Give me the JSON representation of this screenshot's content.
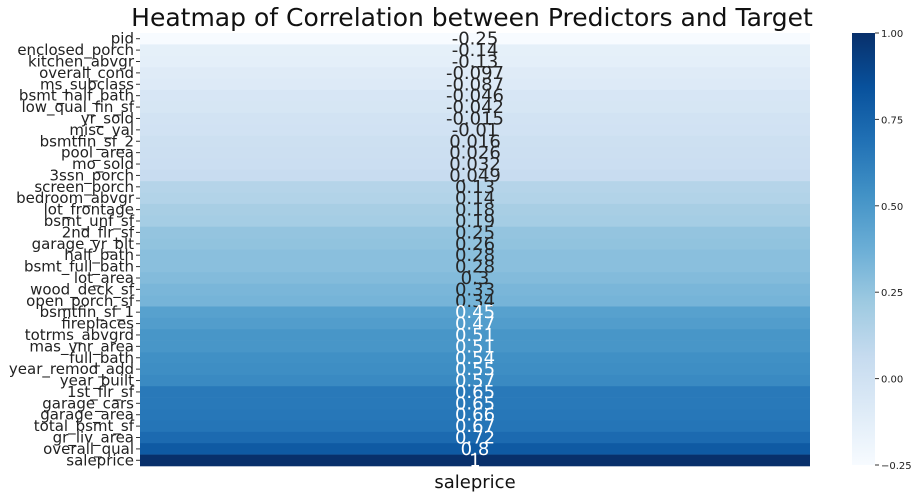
{
  "chart_data": {
    "type": "heatmap",
    "title": "Heatmap of Correlation between Predictors and Target",
    "column": "saleprice",
    "xlabel": "saleprice",
    "colormap": "Blues",
    "vmin": -0.25,
    "vmax": 1.0,
    "colorbar_ticks": [
      "1.00",
      "0.75",
      "0.50",
      "0.25",
      "0.00",
      "−0.25"
    ],
    "colorbar_tick_values": [
      1.0,
      0.75,
      0.5,
      0.25,
      0.0,
      -0.25
    ],
    "rows": [
      {
        "name": "pid",
        "value": -0.25,
        "label": "-0.25"
      },
      {
        "name": "enclosed_porch",
        "value": -0.14,
        "label": "-0.14"
      },
      {
        "name": "kitchen_abvgr",
        "value": -0.13,
        "label": "-0.13"
      },
      {
        "name": "overall_cond",
        "value": -0.097,
        "label": "-0.097"
      },
      {
        "name": "ms_subclass",
        "value": -0.087,
        "label": "-0.087"
      },
      {
        "name": "bsmt_half_bath",
        "value": -0.046,
        "label": "-0.046"
      },
      {
        "name": "low_qual_fin_sf",
        "value": -0.042,
        "label": "-0.042"
      },
      {
        "name": "yr_sold",
        "value": -0.015,
        "label": "-0.015"
      },
      {
        "name": "misc_val",
        "value": -0.01,
        "label": "-0.01"
      },
      {
        "name": "bsmtfin_sf_2",
        "value": 0.016,
        "label": "0.016"
      },
      {
        "name": "pool_area",
        "value": 0.026,
        "label": "0.026"
      },
      {
        "name": "mo_sold",
        "value": 0.032,
        "label": "0.032"
      },
      {
        "name": "3ssn_porch",
        "value": 0.049,
        "label": "0.049"
      },
      {
        "name": "screen_porch",
        "value": 0.13,
        "label": "0.13"
      },
      {
        "name": "bedroom_abvgr",
        "value": 0.14,
        "label": "0.14"
      },
      {
        "name": "lot_frontage",
        "value": 0.18,
        "label": "0.18"
      },
      {
        "name": "bsmt_unf_sf",
        "value": 0.19,
        "label": "0.19"
      },
      {
        "name": "2nd_flr_sf",
        "value": 0.25,
        "label": "0.25"
      },
      {
        "name": "garage_yr_blt",
        "value": 0.26,
        "label": "0.26"
      },
      {
        "name": "half_bath",
        "value": 0.28,
        "label": "0.28"
      },
      {
        "name": "bsmt_full_bath",
        "value": 0.28,
        "label": "0.28"
      },
      {
        "name": "lot_area",
        "value": 0.3,
        "label": "0.3"
      },
      {
        "name": "wood_deck_sf",
        "value": 0.33,
        "label": "0.33"
      },
      {
        "name": "open_porch_sf",
        "value": 0.34,
        "label": "0.34"
      },
      {
        "name": "bsmtfin_sf_1",
        "value": 0.45,
        "label": "0.45"
      },
      {
        "name": "fireplaces",
        "value": 0.47,
        "label": "0.47"
      },
      {
        "name": "totrms_abvgrd",
        "value": 0.51,
        "label": "0.51"
      },
      {
        "name": "mas_vnr_area",
        "value": 0.51,
        "label": "0.51"
      },
      {
        "name": "full_bath",
        "value": 0.54,
        "label": "0.54"
      },
      {
        "name": "year_remod_add",
        "value": 0.55,
        "label": "0.55"
      },
      {
        "name": "year_built",
        "value": 0.57,
        "label": "0.57"
      },
      {
        "name": "1st_flr_sf",
        "value": 0.65,
        "label": "0.65"
      },
      {
        "name": "garage_cars",
        "value": 0.65,
        "label": "0.65"
      },
      {
        "name": "garage_area",
        "value": 0.66,
        "label": "0.66"
      },
      {
        "name": "total_bsmt_sf",
        "value": 0.67,
        "label": "0.67"
      },
      {
        "name": "gr_liv_area",
        "value": 0.72,
        "label": "0.72"
      },
      {
        "name": "overall_qual",
        "value": 0.8,
        "label": "0.8"
      },
      {
        "name": "saleprice",
        "value": 1.0,
        "label": "1"
      }
    ]
  }
}
